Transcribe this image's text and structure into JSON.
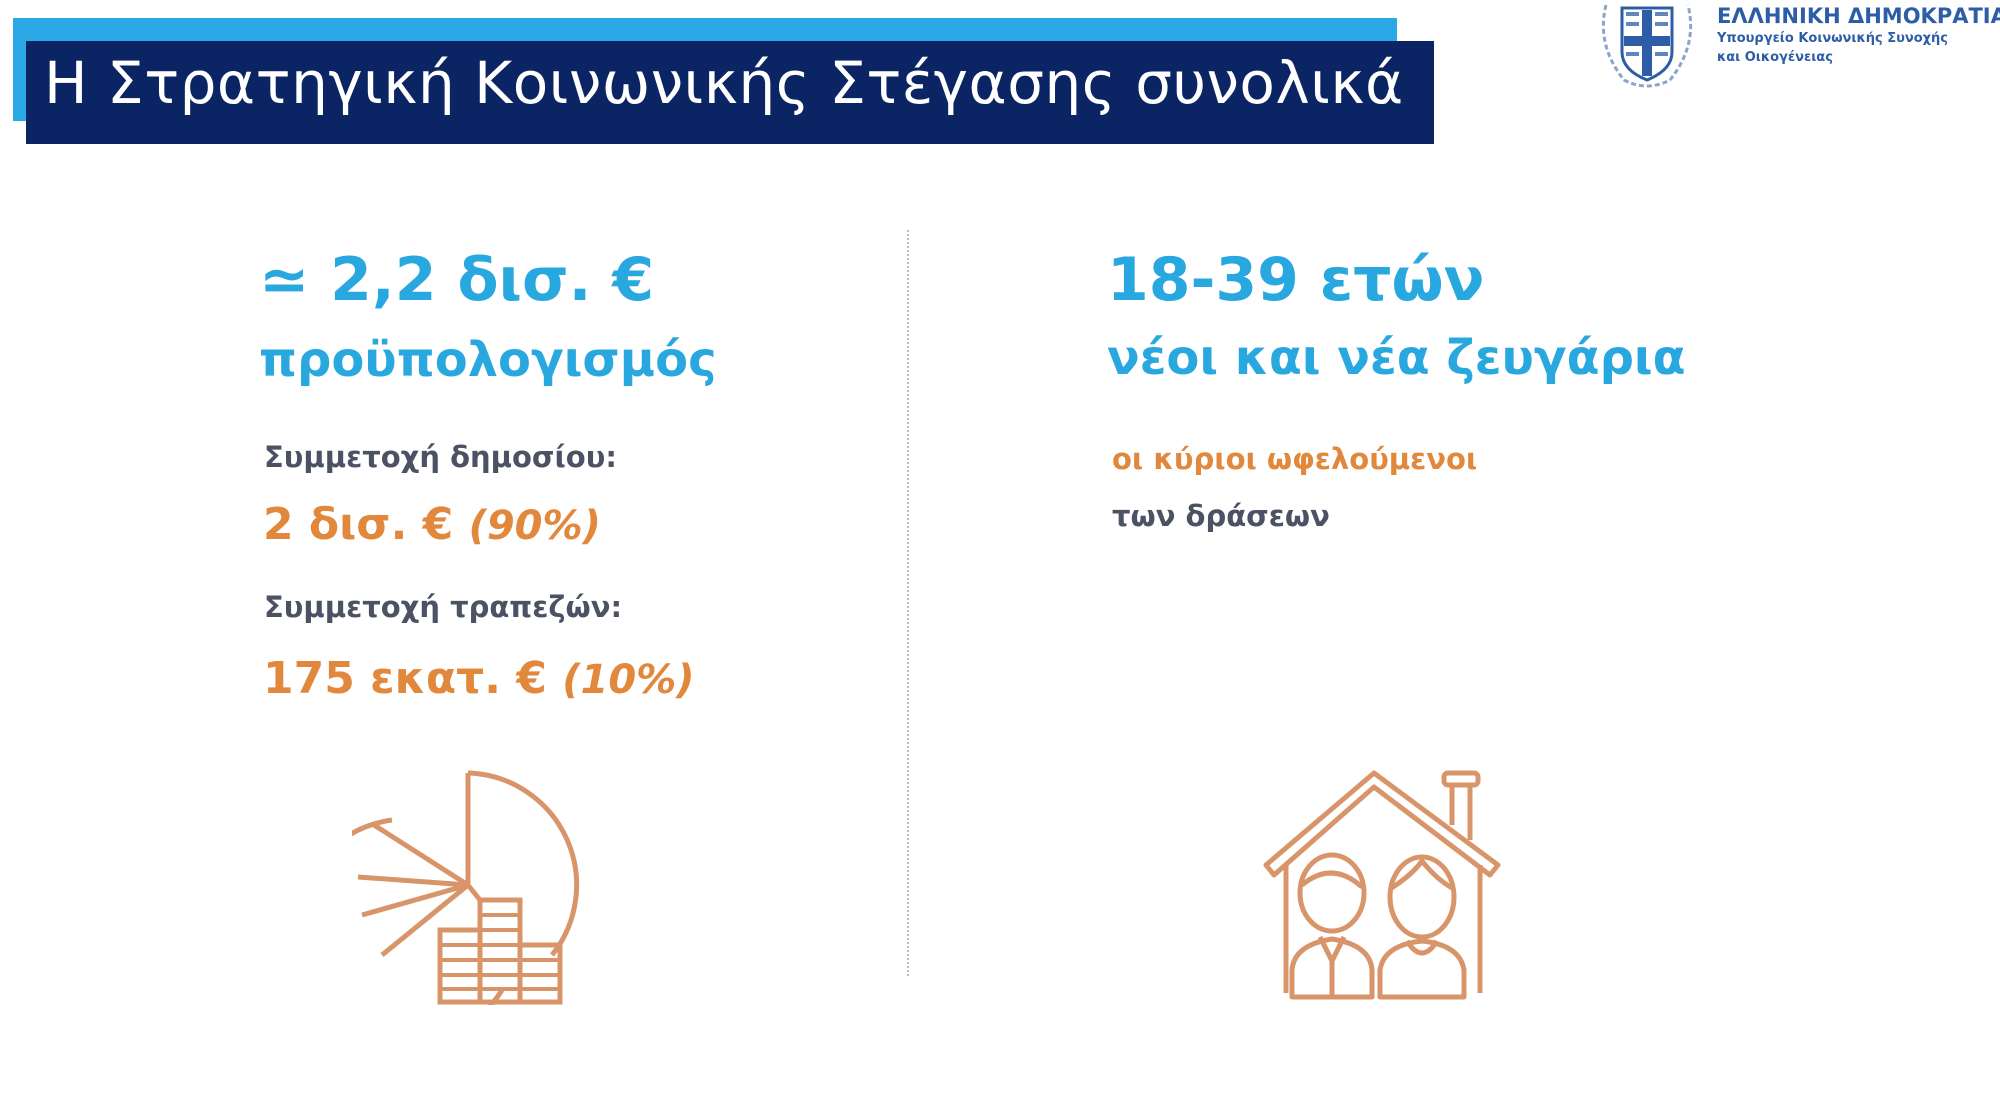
{
  "header": {
    "title": "Η Στρατηγική Κοινωνικής Στέγασης συνολικά",
    "logo": {
      "title": "ΕΛΛΗΝΙΚΗ ΔΗΜΟΚΡΑΤΙΑ",
      "line1": "Υπουργείο Κοινωνικής Συνοχής",
      "line2": "και Οικογένειας",
      "icon": "greek-coat-of-arms-icon"
    }
  },
  "left": {
    "headline": "≃ 2,2 δισ. €",
    "subheadline": "προϋπολογισμός",
    "public_label": "Συμμετοχή δημοσίου:",
    "public_amount": "2 δισ. €",
    "public_pct": "(90%)",
    "banks_label": "Συμμετοχή τραπεζών:",
    "banks_amount": "175 εκατ. €",
    "banks_pct": "(10%)",
    "icon": "pie-chart-coins-icon"
  },
  "right": {
    "headline": "18-39 ετών",
    "subheadline": "νέοι και νέα ζευγάρια",
    "note_orange": "οι κύριοι ωφελούμενοι",
    "note_gray": "των δράσεων",
    "icon": "house-couple-icon"
  },
  "colors": {
    "accent_blue": "#29a8df",
    "navy": "#0b2463",
    "orange": "#e1883d",
    "icon_tan": "#d9956a"
  }
}
